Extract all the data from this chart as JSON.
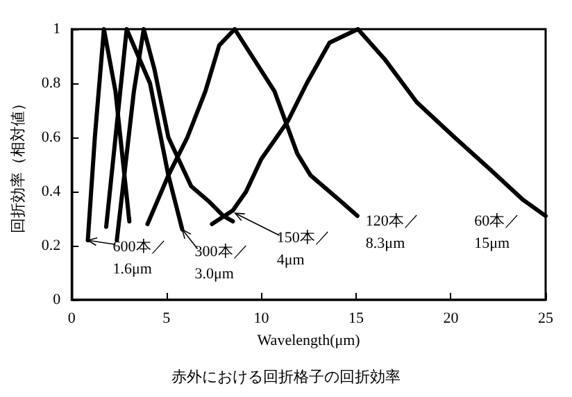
{
  "chart_data": {
    "type": "line",
    "title": "赤外における回折格子の回折効率",
    "xlabel": "Wavelength(μm)",
    "ylabel": "回折効率（相対値）",
    "xlim": [
      0,
      25
    ],
    "xticks": [
      0,
      5,
      10,
      15,
      20,
      25
    ],
    "ylim": [
      0,
      1
    ],
    "yticks": [
      0,
      0.2,
      0.4,
      0.6,
      0.8,
      1
    ],
    "grid": false,
    "marker": "none",
    "line_style": "solid",
    "series": [
      {
        "color": "#000000",
        "x": [
          0.85,
          1.22,
          1.7,
          2.31,
          3.04
        ],
        "values": [
          0.22,
          0.6,
          1.0,
          0.77,
          0.29
        ]
      },
      {
        "color": "#000000",
        "x": [
          1.82,
          2.31,
          2.9,
          4.13,
          5.1,
          5.83
        ],
        "values": [
          0.27,
          0.6,
          1.0,
          0.8,
          0.46,
          0.26
        ]
      },
      {
        "color": "#000000",
        "x": [
          2.38,
          3.28,
          3.8,
          4.37,
          5.1,
          6.3,
          7.29,
          8.0,
          8.5
        ],
        "values": [
          0.22,
          0.77,
          1.0,
          0.85,
          0.6,
          0.42,
          0.36,
          0.31,
          0.29
        ]
      },
      {
        "color": "#000000",
        "x": [
          4.0,
          5.1,
          6.1,
          7.05,
          7.78,
          8.6,
          10.7,
          11.9,
          12.6,
          14.1,
          15.07
        ],
        "values": [
          0.28,
          0.46,
          0.6,
          0.77,
          0.94,
          1.0,
          0.77,
          0.54,
          0.46,
          0.37,
          0.31
        ]
      },
      {
        "color": "#000000",
        "x": [
          7.4,
          8.5,
          9.2,
          10.0,
          11.4,
          12.4,
          13.6,
          15.1,
          16.5,
          18.2,
          20.2,
          22.1,
          23.8,
          25.0
        ],
        "values": [
          0.28,
          0.33,
          0.4,
          0.52,
          0.66,
          0.8,
          0.95,
          1.0,
          0.89,
          0.73,
          0.6,
          0.48,
          0.37,
          0.31
        ]
      }
    ],
    "annotations": [
      {
        "text": "600本／\n1.6μm",
        "x": 0.85,
        "y": 0.22
      },
      {
        "text": "300本／\n3.0μm",
        "x": 5.83,
        "y": 0.26
      },
      {
        "text": "150本／\n4μm",
        "x": 8.62,
        "y": 0.32
      },
      {
        "text": "120本／\n8.3μm",
        "x": 15.07,
        "y": 0.31
      },
      {
        "text": "60本／\n15μm",
        "x": 24.9,
        "y": 0.31
      }
    ]
  }
}
